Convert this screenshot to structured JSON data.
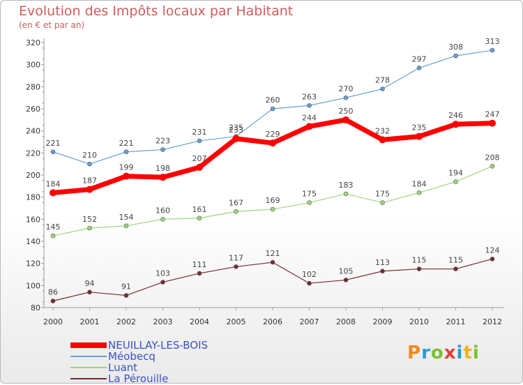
{
  "title": "Evolution des Impôts locaux par Habitant",
  "subtitle": "(en € et par an)",
  "logo": "Proxiti",
  "chart_data": {
    "type": "line",
    "x": [
      "2000",
      "2001",
      "2002",
      "2003",
      "2004",
      "2005",
      "2006",
      "2007",
      "2008",
      "2009",
      "2010",
      "2011",
      "2012"
    ],
    "ylim": [
      80,
      320
    ],
    "yticks": [
      80,
      100,
      120,
      140,
      160,
      180,
      200,
      220,
      240,
      260,
      280,
      300,
      320
    ],
    "grid": false,
    "legend_position": "bottom-left",
    "series": [
      {
        "name": "NEUILLAY-LES-BOIS",
        "color": "#ff0000",
        "values": [
          184,
          187,
          199,
          198,
          207,
          233,
          229,
          244,
          250,
          232,
          235,
          246,
          247
        ]
      },
      {
        "name": "Méobecq",
        "color": "#6a9fd4",
        "values": [
          221,
          210,
          221,
          223,
          231,
          235,
          260,
          263,
          270,
          278,
          297,
          308,
          313
        ]
      },
      {
        "name": "Luant",
        "color": "#9ed57a",
        "values": [
          145,
          152,
          154,
          160,
          161,
          167,
          169,
          175,
          183,
          175,
          184,
          194,
          208
        ]
      },
      {
        "name": "La Pérouille",
        "color": "#7a2a32",
        "values": [
          86,
          94,
          91,
          103,
          111,
          117,
          121,
          102,
          105,
          113,
          115,
          115,
          124
        ]
      }
    ]
  }
}
